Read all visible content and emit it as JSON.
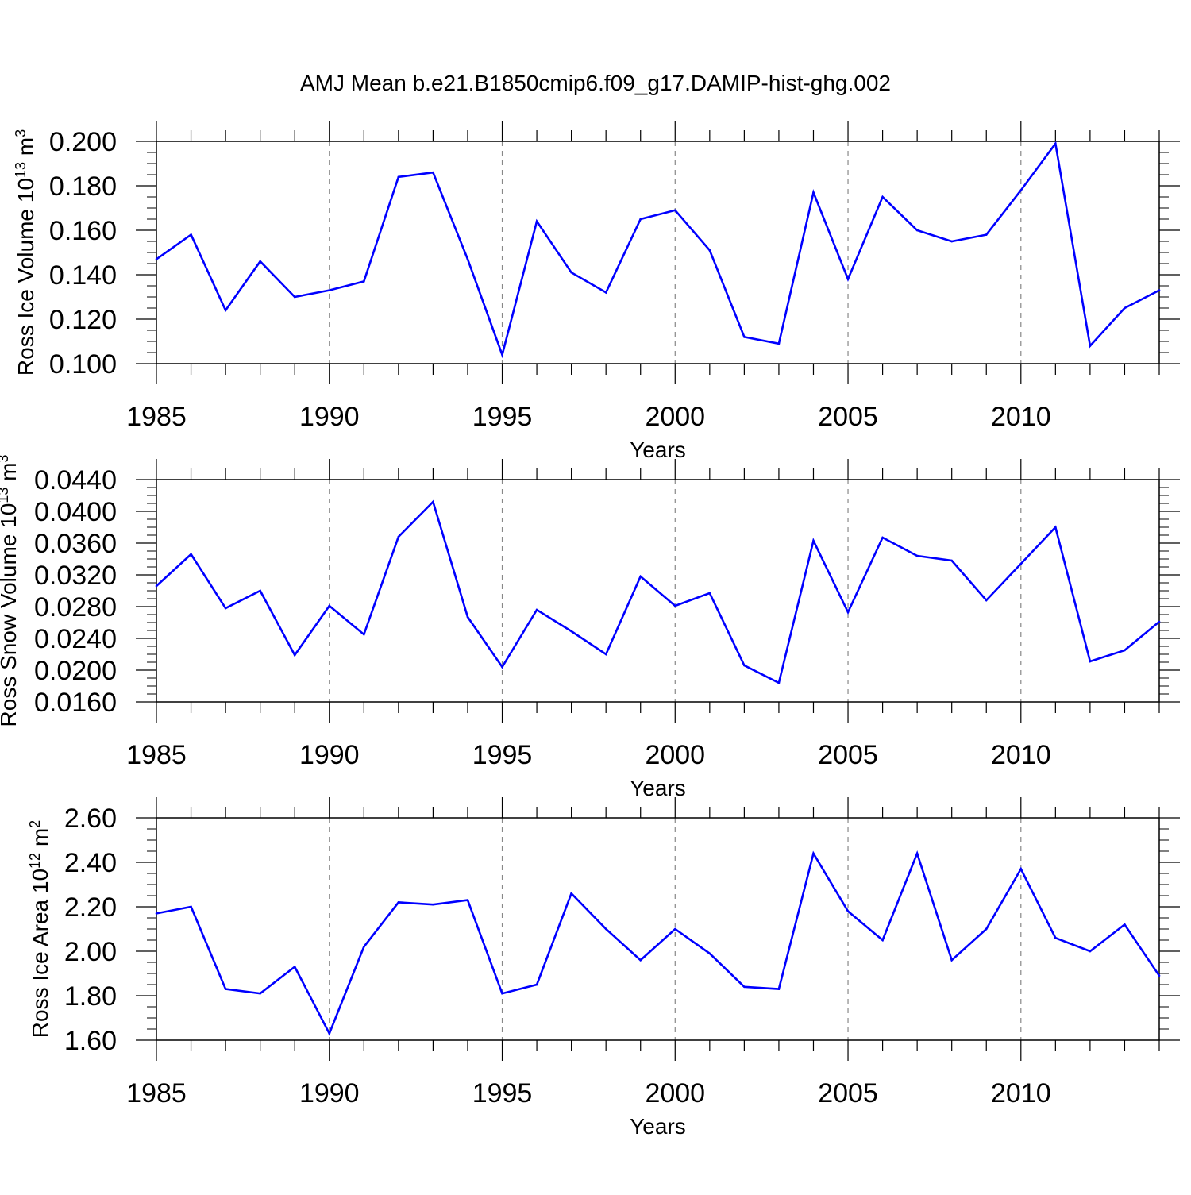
{
  "title": "AMJ Mean b.e21.B1850cmip6.f09_g17.DAMIP-hist-ghg.002",
  "colors": {
    "line": "#0000ff",
    "axis": "#000000",
    "grid": "#888888"
  },
  "chart_data": [
    {
      "type": "line",
      "ylabel": "Ross Ice Volume",
      "ylabel_unit": "10",
      "ylabel_exp": "13",
      "ylabel_unit2": "m",
      "ylabel_exp2": "3",
      "xlabel": "Years",
      "xlim": [
        1985,
        2014
      ],
      "ylim": [
        0.1,
        0.2
      ],
      "x_ticks": [
        "1985",
        "1990",
        "1995",
        "2000",
        "2005",
        "2010"
      ],
      "y_ticks": [
        "0.100",
        "0.120",
        "0.140",
        "0.160",
        "0.180",
        "0.200"
      ],
      "y_tick_values": [
        0.1,
        0.12,
        0.14,
        0.16,
        0.18,
        0.2
      ],
      "y_minor_step": 0.005,
      "x": [
        1985,
        1986,
        1987,
        1988,
        1989,
        1990,
        1991,
        1992,
        1993,
        1994,
        1995,
        1996,
        1997,
        1998,
        1999,
        2000,
        2001,
        2002,
        2003,
        2004,
        2005,
        2006,
        2007,
        2008,
        2009,
        2010,
        2011,
        2012,
        2013,
        2014
      ],
      "values": [
        0.147,
        0.158,
        0.124,
        0.146,
        0.13,
        0.133,
        0.137,
        0.184,
        0.186,
        0.147,
        0.104,
        0.164,
        0.141,
        0.132,
        0.165,
        0.169,
        0.151,
        0.112,
        0.109,
        0.177,
        0.138,
        0.175,
        0.16,
        0.155,
        0.158,
        0.178,
        0.199,
        0.108,
        0.125,
        0.133
      ]
    },
    {
      "type": "line",
      "ylabel": "Ross Snow Volume",
      "ylabel_unit": "10",
      "ylabel_exp": "13",
      "ylabel_unit2": "m",
      "ylabel_exp2": "3",
      "xlabel": "Years",
      "xlim": [
        1985,
        2014
      ],
      "ylim": [
        0.016,
        0.044
      ],
      "x_ticks": [
        "1985",
        "1990",
        "1995",
        "2000",
        "2005",
        "2010"
      ],
      "y_ticks": [
        "0.0160",
        "0.0200",
        "0.0240",
        "0.0280",
        "0.0320",
        "0.0360",
        "0.0400",
        "0.0440"
      ],
      "y_tick_values": [
        0.016,
        0.02,
        0.024,
        0.028,
        0.032,
        0.036,
        0.04,
        0.044
      ],
      "y_minor_step": 0.001,
      "x": [
        1985,
        1986,
        1987,
        1988,
        1989,
        1990,
        1991,
        1992,
        1993,
        1994,
        1995,
        1996,
        1997,
        1998,
        1999,
        2000,
        2001,
        2002,
        2003,
        2004,
        2005,
        2006,
        2007,
        2008,
        2009,
        2010,
        2011,
        2012,
        2013,
        2014
      ],
      "values": [
        0.0306,
        0.0346,
        0.0278,
        0.03,
        0.0219,
        0.0281,
        0.0245,
        0.0368,
        0.0412,
        0.0267,
        0.0204,
        0.0276,
        0.0249,
        0.022,
        0.0318,
        0.0281,
        0.0297,
        0.0206,
        0.0184,
        0.0363,
        0.0273,
        0.0367,
        0.0344,
        0.0338,
        0.0288,
        0.0334,
        0.038,
        0.0211,
        0.0225,
        0.0261
      ]
    },
    {
      "type": "line",
      "ylabel": "Ross Ice Area",
      "ylabel_unit": "10",
      "ylabel_exp": "12",
      "ylabel_unit2": "m",
      "ylabel_exp2": "2",
      "xlabel": "Years",
      "xlim": [
        1985,
        2014
      ],
      "ylim": [
        1.6,
        2.6
      ],
      "x_ticks": [
        "1985",
        "1990",
        "1995",
        "2000",
        "2005",
        "2010"
      ],
      "y_ticks": [
        "1.60",
        "1.80",
        "2.00",
        "2.20",
        "2.40",
        "2.60"
      ],
      "y_tick_values": [
        1.6,
        1.8,
        2.0,
        2.2,
        2.4,
        2.6
      ],
      "y_minor_step": 0.05,
      "x": [
        1985,
        1986,
        1987,
        1988,
        1989,
        1990,
        1991,
        1992,
        1993,
        1994,
        1995,
        1996,
        1997,
        1998,
        1999,
        2000,
        2001,
        2002,
        2003,
        2004,
        2005,
        2006,
        2007,
        2008,
        2009,
        2010,
        2011,
        2012,
        2013,
        2014
      ],
      "values": [
        2.17,
        2.2,
        1.83,
        1.81,
        1.93,
        1.63,
        2.02,
        2.22,
        2.21,
        2.23,
        1.81,
        1.85,
        2.26,
        2.1,
        1.96,
        2.1,
        1.99,
        1.84,
        1.83,
        2.44,
        2.18,
        2.05,
        2.44,
        1.96,
        2.1,
        2.37,
        2.06,
        2.0,
        2.12,
        1.89
      ]
    }
  ]
}
